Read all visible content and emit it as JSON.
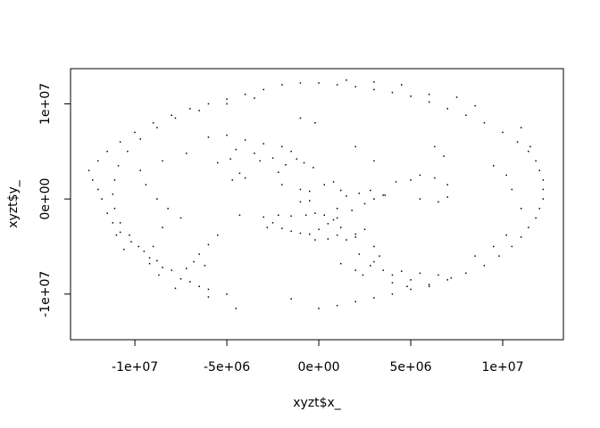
{
  "chart_data": {
    "type": "scatter",
    "xlabel": "xyzt$x_",
    "ylabel": "xyzt$y_",
    "xlim": [
      -13500000,
      13300000
    ],
    "ylim": [
      -14800000,
      13700000
    ],
    "x_ticks": [
      {
        "value": -10000000,
        "label": "-1e+07"
      },
      {
        "value": -5000000,
        "label": "-5e+06"
      },
      {
        "value": 0,
        "label": "0e+00"
      },
      {
        "value": 5000000,
        "label": "5e+06"
      },
      {
        "value": 10000000,
        "label": "1e+07"
      }
    ],
    "y_ticks": [
      {
        "value": -10000000,
        "label": "-1e+07"
      },
      {
        "value": 0,
        "label": "0e+00"
      },
      {
        "value": 10000000,
        "label": "1e+07"
      }
    ],
    "point_color": "#000000",
    "series": [
      {
        "values": [
          [
            -12500000,
            3000000
          ],
          [
            -12300000,
            2000000
          ],
          [
            -12000000,
            1000000
          ],
          [
            -11800000,
            0
          ],
          [
            -11500000,
            -1500000
          ],
          [
            -11200000,
            -2500000
          ],
          [
            -10800000,
            -3500000
          ],
          [
            -10200000,
            -4500000
          ],
          [
            -9500000,
            -5500000
          ],
          [
            -8800000,
            -6500000
          ],
          [
            -8000000,
            -7500000
          ],
          [
            -7000000,
            -8700000
          ],
          [
            -6000000,
            -9500000
          ],
          [
            -5000000,
            -10000000
          ],
          [
            -12000000,
            4000000
          ],
          [
            -11500000,
            5000000
          ],
          [
            -10800000,
            6000000
          ],
          [
            -10000000,
            7000000
          ],
          [
            -9000000,
            8000000
          ],
          [
            -8000000,
            8800000
          ],
          [
            -7000000,
            9500000
          ],
          [
            -6000000,
            10000000
          ],
          [
            -5000000,
            10500000
          ],
          [
            -4000000,
            11000000
          ],
          [
            -3000000,
            11500000
          ],
          [
            -2000000,
            12000000
          ],
          [
            -1000000,
            12200000
          ],
          [
            0,
            12200000
          ],
          [
            1000000,
            12000000
          ],
          [
            2000000,
            11800000
          ],
          [
            3000000,
            11500000
          ],
          [
            4000000,
            11200000
          ],
          [
            5000000,
            10800000
          ],
          [
            6000000,
            10200000
          ],
          [
            7000000,
            9500000
          ],
          [
            8000000,
            8800000
          ],
          [
            9000000,
            8000000
          ],
          [
            10000000,
            7000000
          ],
          [
            10800000,
            6000000
          ],
          [
            11400000,
            5000000
          ],
          [
            11800000,
            4000000
          ],
          [
            12000000,
            3000000
          ],
          [
            12200000,
            2000000
          ],
          [
            12200000,
            1000000
          ],
          [
            12200000,
            0
          ],
          [
            12000000,
            -1000000
          ],
          [
            11800000,
            -2000000
          ],
          [
            11400000,
            -3000000
          ],
          [
            11000000,
            -4000000
          ],
          [
            10500000,
            -5000000
          ],
          [
            9800000,
            -6000000
          ],
          [
            9000000,
            -7000000
          ],
          [
            8000000,
            -7800000
          ],
          [
            7000000,
            -8500000
          ],
          [
            6000000,
            -9000000
          ],
          [
            5000000,
            -9500000
          ],
          [
            4000000,
            -10000000
          ],
          [
            3000000,
            -10400000
          ],
          [
            2000000,
            -10800000
          ],
          [
            1000000,
            -11200000
          ],
          [
            0,
            -11500000
          ],
          [
            -6500000,
            -9200000
          ],
          [
            -7500000,
            -8400000
          ],
          [
            -8500000,
            -7200000
          ],
          [
            -9200000,
            -6200000
          ],
          [
            -9800000,
            -5000000
          ],
          [
            -10300000,
            -3800000
          ],
          [
            -10800000,
            -2500000
          ],
          [
            -11100000,
            -1000000
          ],
          [
            -11200000,
            500000
          ],
          [
            -11100000,
            2000000
          ],
          [
            -10900000,
            3500000
          ],
          [
            -10400000,
            5000000
          ],
          [
            -9700000,
            6300000
          ],
          [
            -8800000,
            7500000
          ],
          [
            -7800000,
            8500000
          ],
          [
            -6500000,
            9300000
          ],
          [
            -5000000,
            10000000
          ],
          [
            -3500000,
            10600000
          ],
          [
            -6000000,
            6500000
          ],
          [
            -5000000,
            6700000
          ],
          [
            -4000000,
            6200000
          ],
          [
            -3000000,
            5800000
          ],
          [
            -2000000,
            5500000
          ],
          [
            -1500000,
            5000000
          ],
          [
            -4500000,
            5200000
          ],
          [
            -3500000,
            4800000
          ],
          [
            -2500000,
            4300000
          ],
          [
            -1200000,
            4200000
          ],
          [
            -800000,
            3800000
          ],
          [
            -300000,
            3300000
          ],
          [
            -1800000,
            3600000
          ],
          [
            -4800000,
            4200000
          ],
          [
            -5500000,
            3800000
          ],
          [
            -3200000,
            4000000
          ],
          [
            -2200000,
            2800000
          ],
          [
            -2000000,
            1500000
          ],
          [
            -1000000,
            1000000
          ],
          [
            -500000,
            800000
          ],
          [
            300000,
            1500000
          ],
          [
            800000,
            1800000
          ],
          [
            1200000,
            900000
          ],
          [
            1500000,
            300000
          ],
          [
            2200000,
            600000
          ],
          [
            2800000,
            900000
          ],
          [
            3500000,
            400000
          ],
          [
            4200000,
            1800000
          ],
          [
            5000000,
            2000000
          ],
          [
            5500000,
            2500000
          ],
          [
            6300000,
            2200000
          ],
          [
            7000000,
            1500000
          ],
          [
            2000000,
            5500000
          ],
          [
            3000000,
            4000000
          ],
          [
            -1000000,
            8500000
          ],
          [
            -200000,
            8000000
          ],
          [
            -500000,
            -200000
          ],
          [
            -1000000,
            -300000
          ],
          [
            1000000,
            -1000000
          ],
          [
            1800000,
            -1200000
          ],
          [
            2500000,
            -500000
          ],
          [
            3000000,
            0
          ],
          [
            3600000,
            400000
          ],
          [
            5500000,
            0
          ],
          [
            6500000,
            -300000
          ],
          [
            7000000,
            200000
          ],
          [
            -4300000,
            -1700000
          ],
          [
            -3000000,
            -1900000
          ],
          [
            -2500000,
            -2500000
          ],
          [
            -2800000,
            -3000000
          ],
          [
            -2000000,
            -3100000
          ],
          [
            -1500000,
            -3400000
          ],
          [
            -1000000,
            -3600000
          ],
          [
            -500000,
            -3700000
          ],
          [
            0,
            -3200000
          ],
          [
            500000,
            -2600000
          ],
          [
            800000,
            -2200000
          ],
          [
            300000,
            -1700000
          ],
          [
            -200000,
            -1500000
          ],
          [
            -700000,
            -1700000
          ],
          [
            -1500000,
            -1800000
          ],
          [
            -2200000,
            -1700000
          ],
          [
            1000000,
            -2000000
          ],
          [
            1200000,
            -3000000
          ],
          [
            1000000,
            -3800000
          ],
          [
            500000,
            -4200000
          ],
          [
            -200000,
            -4300000
          ],
          [
            1500000,
            -4300000
          ],
          [
            2000000,
            -3700000
          ],
          [
            2500000,
            -3200000
          ],
          [
            2000000,
            -4000000
          ],
          [
            3000000,
            -5000000
          ],
          [
            3300000,
            -6000000
          ],
          [
            2800000,
            -7000000
          ],
          [
            2000000,
            -7500000
          ],
          [
            1200000,
            -6800000
          ],
          [
            2200000,
            -5800000
          ],
          [
            3000000,
            -6600000
          ],
          [
            2400000,
            -8000000
          ],
          [
            3500000,
            -7500000
          ],
          [
            4500000,
            -7600000
          ],
          [
            5500000,
            -7800000
          ],
          [
            6500000,
            -8000000
          ],
          [
            7200000,
            -8300000
          ],
          [
            4000000,
            -8000000
          ],
          [
            5000000,
            -8500000
          ],
          [
            4800000,
            -9200000
          ],
          [
            4000000,
            -8800000
          ],
          [
            6000000,
            -9200000
          ],
          [
            -1500000,
            -10500000
          ],
          [
            -4500000,
            -11500000
          ],
          [
            -6000000,
            -10300000
          ],
          [
            -7800000,
            -9400000
          ],
          [
            -11000000,
            -3800000
          ],
          [
            -10600000,
            -5300000
          ],
          [
            -9000000,
            -5000000
          ],
          [
            -8500000,
            -3000000
          ],
          [
            -7500000,
            -2000000
          ],
          [
            -8200000,
            -1000000
          ],
          [
            -8800000,
            0
          ],
          [
            -9400000,
            1500000
          ],
          [
            -9700000,
            3000000
          ],
          [
            -8500000,
            4000000
          ],
          [
            -7200000,
            4800000
          ],
          [
            -6500000,
            -5800000
          ],
          [
            -6000000,
            -4800000
          ],
          [
            -5500000,
            -3800000
          ],
          [
            -9200000,
            -6800000
          ],
          [
            -8700000,
            -8000000
          ],
          [
            -7200000,
            -7300000
          ],
          [
            -6800000,
            -6600000
          ],
          [
            -6200000,
            -7000000
          ],
          [
            -4300000,
            2700000
          ],
          [
            -4000000,
            2200000
          ],
          [
            -4700000,
            2000000
          ],
          [
            9500000,
            3500000
          ],
          [
            10200000,
            2500000
          ],
          [
            10500000,
            1000000
          ],
          [
            11000000,
            -1000000
          ],
          [
            10200000,
            -3800000
          ],
          [
            9500000,
            -5000000
          ],
          [
            8500000,
            -6000000
          ],
          [
            11500000,
            5500000
          ],
          [
            11000000,
            7500000
          ],
          [
            8500000,
            9800000
          ],
          [
            7500000,
            10700000
          ],
          [
            6000000,
            11000000
          ],
          [
            4500000,
            12000000
          ],
          [
            3000000,
            12300000
          ],
          [
            1500000,
            12500000
          ],
          [
            6300000,
            5500000
          ],
          [
            6800000,
            4500000
          ]
        ]
      }
    ]
  }
}
